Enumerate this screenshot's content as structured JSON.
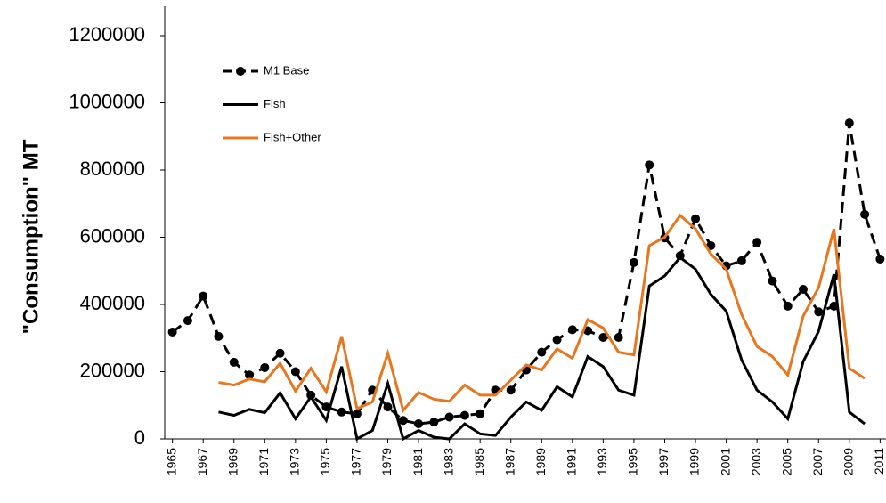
{
  "chart_data": {
    "type": "line",
    "ylabel": "\"Consumption\"  MT",
    "x": [
      1965,
      1966,
      1967,
      1968,
      1969,
      1970,
      1971,
      1972,
      1973,
      1974,
      1975,
      1976,
      1977,
      1978,
      1979,
      1980,
      1981,
      1982,
      1983,
      1984,
      1985,
      1986,
      1987,
      1988,
      1989,
      1990,
      1991,
      1992,
      1993,
      1994,
      1995,
      1996,
      1997,
      1998,
      1999,
      2000,
      2001,
      2002,
      2003,
      2004,
      2005,
      2006,
      2007,
      2008,
      2009,
      2010,
      2011
    ],
    "xlim": [
      1964.5,
      2011.5
    ],
    "xticks": [
      1965,
      1967,
      1969,
      1971,
      1973,
      1975,
      1977,
      1979,
      1981,
      1983,
      1985,
      1987,
      1989,
      1991,
      1993,
      1995,
      1997,
      1999,
      2001,
      2003,
      2005,
      2007,
      2009,
      2011
    ],
    "ylim": [
      0,
      1200000
    ],
    "yticks": [
      0,
      200000,
      400000,
      600000,
      800000,
      1000000,
      1200000
    ],
    "grid": false,
    "legend": "upper left",
    "series": [
      {
        "name": "M1 Base",
        "color": "#000000",
        "line_style": "dashed",
        "marker": "circle",
        "values": [
          318000,
          352000,
          425000,
          305000,
          228000,
          190000,
          212000,
          255000,
          200000,
          130000,
          95000,
          80000,
          75000,
          145000,
          95000,
          55000,
          45000,
          50000,
          65000,
          70000,
          75000,
          145000,
          145000,
          205000,
          258000,
          295000,
          325000,
          322000,
          302000,
          302000,
          525000,
          815000,
          598000,
          545000,
          655000,
          575000,
          515000,
          530000,
          585000,
          470000,
          395000,
          445000,
          378000,
          395000,
          940000,
          668000,
          535000
        ]
      },
      {
        "name": "Fish",
        "color": "#000000",
        "line_style": "solid",
        "marker": "none",
        "values": [
          null,
          null,
          null,
          80000,
          70000,
          88000,
          78000,
          137000,
          60000,
          125000,
          55000,
          215000,
          0,
          25000,
          165000,
          0,
          25000,
          5000,
          0,
          45000,
          15000,
          10000,
          65000,
          110000,
          85000,
          155000,
          125000,
          245000,
          215000,
          145000,
          130000,
          455000,
          485000,
          540000,
          505000,
          430000,
          380000,
          235000,
          145000,
          110000,
          60000,
          230000,
          320000,
          490000,
          80000,
          45000,
          null
        ]
      },
      {
        "name": "Fish+Other",
        "color": "#e8761e",
        "line_style": "solid",
        "marker": "none",
        "values": [
          null,
          null,
          null,
          168000,
          160000,
          178000,
          170000,
          225000,
          142000,
          210000,
          140000,
          305000,
          90000,
          110000,
          255000,
          85000,
          138000,
          118000,
          112000,
          160000,
          130000,
          130000,
          175000,
          220000,
          205000,
          268000,
          240000,
          355000,
          330000,
          258000,
          250000,
          575000,
          600000,
          665000,
          625000,
          550000,
          505000,
          370000,
          275000,
          245000,
          190000,
          365000,
          450000,
          625000,
          210000,
          180000,
          null
        ]
      }
    ]
  }
}
